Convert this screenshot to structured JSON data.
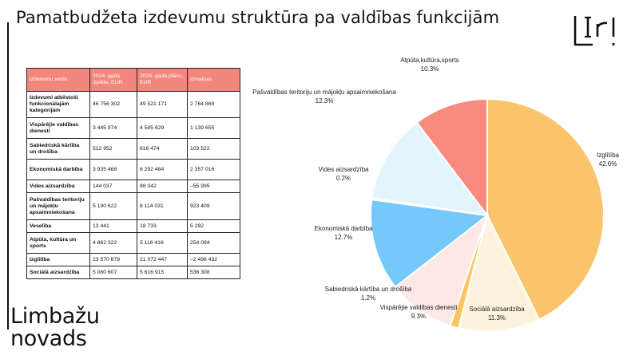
{
  "title": "Pamatbudžeta izdevumu struktūra pa valdības funkcijām",
  "brand": {
    "line1": "Limbažu",
    "line2": "novads",
    "logo_icon": "limbazu-novads-logo"
  },
  "table": {
    "headers": [
      "Izdevumu veids",
      "2024. gada izpilde, EUR",
      "2025. gada plāns, EUR",
      "Izmaiņas"
    ],
    "rows": [
      [
        "Izdevumi atbilstoši funkcionālajām kategorijām",
        "46 756 302",
        "49 521 171",
        "2 764 869"
      ],
      [
        "Vispārējie valdības dienesti",
        "3 445  974",
        "4 585  629",
        "1 139  655"
      ],
      [
        "Sabiedriskā kārtība un drošība",
        "512 952",
        "616 474",
        "103 522"
      ],
      [
        "Ekonomiskā darbība",
        "3 935 468",
        "6 292 484",
        "2 357 016"
      ],
      [
        "Vides aizsardzība",
        "144 037",
        "88 042",
        "–55 995"
      ],
      [
        "Pašvaldības teritoriju un mājokļu apsaimniekošana",
        "5 190 622",
        "6 114 031",
        "923 409"
      ],
      [
        "Veselība",
        "13 441",
        "18 733",
        "5 292"
      ],
      [
        "Atpūta, kultūra un sports",
        "4 862 322",
        "5 116 416",
        "254 094"
      ],
      [
        "Izglītība",
        "23 570 879",
        "21 072 447",
        "–2 498 432"
      ],
      [
        "Sociālā aizsardzība",
        "5 080 607",
        "5 616 915",
        "536 308"
      ]
    ]
  },
  "chart_data": {
    "type": "pie",
    "title": "",
    "unit": "%",
    "slices": [
      {
        "label": "Izglītība",
        "value": 42.6,
        "display": "42.6%",
        "color": "#fcc46a"
      },
      {
        "label": "Sociālā aizsardzība",
        "value": 11.3,
        "display": "11.3%",
        "color": "#fdf2de"
      },
      {
        "label": "Sabiedriskā kārtība un drošība",
        "value": 1.2,
        "display": "1.2%",
        "color": "#fbc561"
      },
      {
        "label": "Vispārējie valdības dienesti",
        "value": 9.3,
        "display": "9.3%",
        "color": "#fde8e6"
      },
      {
        "label": "Ekonomiskā darbība",
        "value": 12.7,
        "display": "12.7%",
        "color": "#74c8fb"
      },
      {
        "label": "Vides aizsardzība",
        "value": 0.2,
        "display": "0.2%",
        "color": "#9ad7fa"
      },
      {
        "label": "Pašvaldības teritoriju un mājokļu apsaimniekošana",
        "value": 12.3,
        "display": "12.3%",
        "color": "#e3f4fd"
      },
      {
        "label": "Atpūta,kultūra,sports",
        "value": 10.3,
        "display": "10.3%",
        "color": "#f98b7e"
      }
    ]
  }
}
